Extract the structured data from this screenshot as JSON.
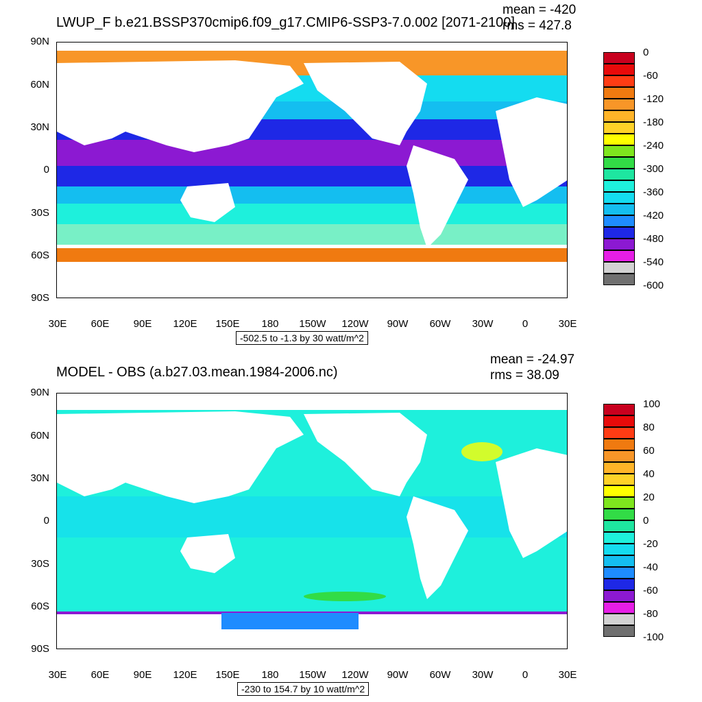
{
  "panels": [
    {
      "title": "LWUP_F b.e21.BSSP370cmip6.f09_g17.CMIP6-SSP3-7.0.002 [2071-2100]",
      "mean": "mean = -420",
      "rms": "rms = 427.8",
      "range_label": "-502.5 to -1.3 by 30 watt/m^2",
      "lat_labels": [
        "90N",
        "60N",
        "30N",
        "0",
        "30S",
        "60S",
        "90S"
      ],
      "lon_labels": [
        "30E",
        "60E",
        "90E",
        "120E",
        "150E",
        "180",
        "150W",
        "120W",
        "90W",
        "60W",
        "30W",
        "0",
        "30E"
      ],
      "colorbar_labels": [
        "0",
        "-60",
        "-120",
        "-180",
        "-240",
        "-300",
        "-360",
        "-420",
        "-480",
        "-540",
        "-600"
      ],
      "colorbar_colors": [
        "#c8001e",
        "#e80a0a",
        "#ff3c14",
        "#f07a10",
        "#f89628",
        "#ffb428",
        "#ffd228",
        "#ffff00",
        "#7fe61e",
        "#32dc46",
        "#1ee6a0",
        "#1ef0dc",
        "#14dcf0",
        "#14bef0",
        "#1e8cff",
        "#1e28e6",
        "#8c19d2",
        "#e61ee6",
        "#d2d2d2",
        "#707070"
      ]
    },
    {
      "title": "MODEL - OBS (a.b27.03.mean.1984-2006.nc)",
      "mean": "mean = -24.97",
      "rms": "rms = 38.09",
      "range_label": "-230 to 154.7 by 10 watt/m^2",
      "lat_labels": [
        "90N",
        "60N",
        "30N",
        "0",
        "30S",
        "60S",
        "90S"
      ],
      "lon_labels": [
        "30E",
        "60E",
        "90E",
        "120E",
        "150E",
        "180",
        "150W",
        "120W",
        "90W",
        "60W",
        "30W",
        "0",
        "30E"
      ],
      "colorbar_labels": [
        "100",
        "80",
        "60",
        "40",
        "20",
        "0",
        "-20",
        "-40",
        "-60",
        "-80",
        "-100"
      ],
      "colorbar_colors": [
        "#c8001e",
        "#e80a0a",
        "#ff3c14",
        "#f07a10",
        "#f89628",
        "#ffb428",
        "#ffd228",
        "#ffff00",
        "#7fe61e",
        "#32dc46",
        "#1ee6a0",
        "#1ef0dc",
        "#14dcf0",
        "#14bef0",
        "#1e8cff",
        "#1e28e6",
        "#8c19d2",
        "#e61ee6",
        "#d2d2d2",
        "#707070"
      ]
    }
  ]
}
